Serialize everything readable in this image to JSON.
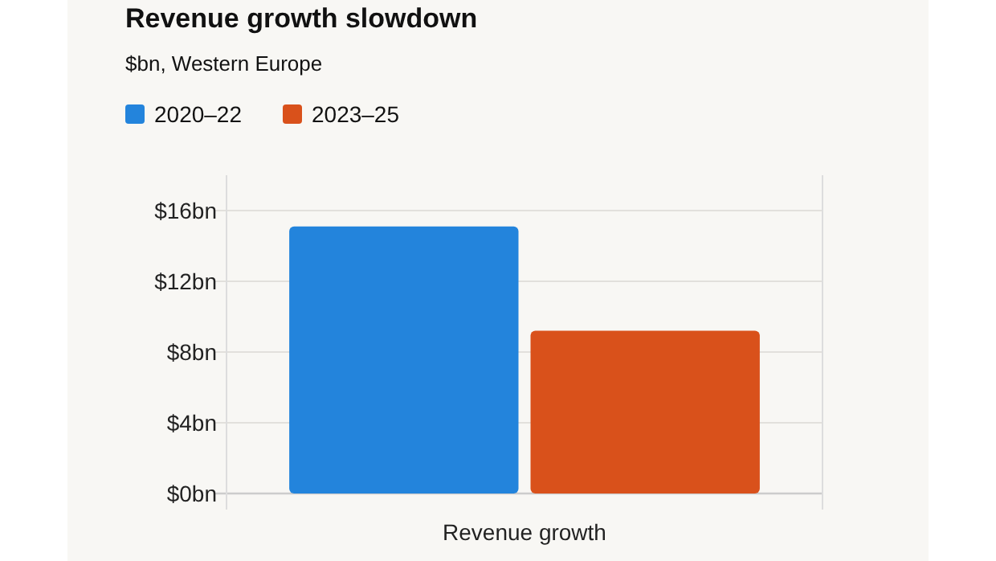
{
  "chart_data": {
    "type": "bar",
    "title": "Revenue growth slowdown",
    "subtitle": "$bn, Western Europe",
    "categories": [
      "Revenue growth"
    ],
    "series": [
      {
        "name": "2020–22",
        "color": "#2384dc",
        "values": [
          15.1
        ]
      },
      {
        "name": "2023–25",
        "color": "#d9511b",
        "values": [
          9.2
        ]
      }
    ],
    "ylim": [
      0,
      18
    ],
    "yticks": [
      {
        "value": 0,
        "label": "$0bn"
      },
      {
        "value": 4,
        "label": "$4bn"
      },
      {
        "value": 8,
        "label": "$8bn"
      },
      {
        "value": 12,
        "label": "$12bn"
      },
      {
        "value": 16,
        "label": "$16bn"
      }
    ],
    "grid": "y",
    "legend": "top left"
  }
}
